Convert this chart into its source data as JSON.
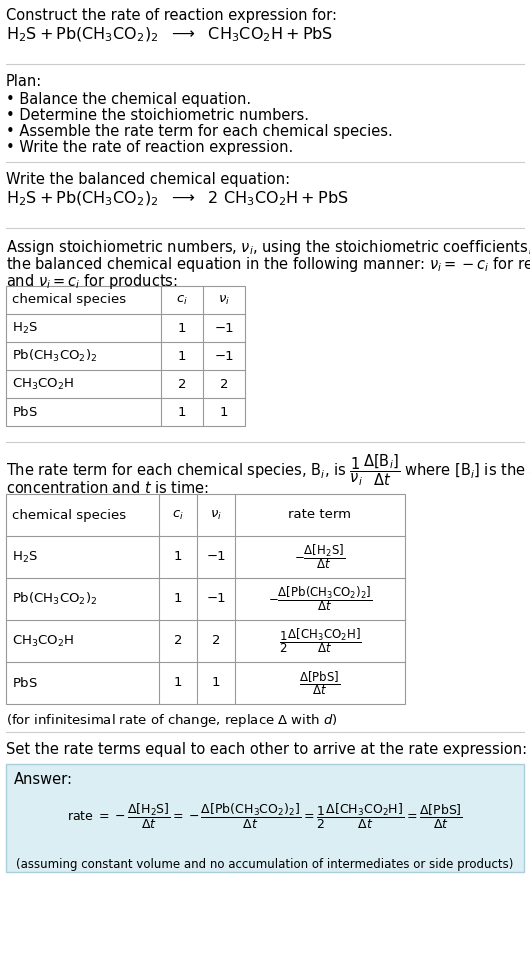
{
  "bg_color": "#ffffff",
  "text_color": "#000000",
  "answer_box_color": "#daeef3",
  "answer_box_border": "#aacfda",
  "fs": 10.5,
  "fs_small": 9.5,
  "fs_tiny": 8.5,
  "title_line1": "Construct the rate of reaction expression for:",
  "plan_header": "Plan:",
  "plan_items": [
    "• Balance the chemical equation.",
    "• Determine the stoichiometric numbers.",
    "• Assemble the rate term for each chemical species.",
    "• Write the rate of reaction expression."
  ],
  "balanced_header": "Write the balanced chemical equation:",
  "assign_text1": "Assign stoichiometric numbers, $\\nu_i$, using the stoichiometric coefficients, $c_i$, from",
  "assign_text2": "the balanced chemical equation in the following manner: $\\nu_i = -c_i$ for reactants",
  "assign_text3": "and $\\nu_i = c_i$ for products:",
  "table1_headers": [
    "chemical species",
    "$c_i$",
    "$\\nu_i$"
  ],
  "table1_rows": [
    [
      "$\\mathrm{H_2S}$",
      "1",
      "−1"
    ],
    [
      "$\\mathrm{Pb(CH_3CO_2)_2}$",
      "1",
      "−1"
    ],
    [
      "$\\mathrm{CH_3CO_2H}$",
      "2",
      "2"
    ],
    [
      "$\\mathrm{PbS}$",
      "1",
      "1"
    ]
  ],
  "rate_text1": "The rate term for each chemical species, $\\mathrm{B}_i$, is $\\dfrac{1}{\\nu_i}\\dfrac{\\Delta[\\mathrm{B}_i]}{\\Delta t}$ where $[\\mathrm{B}_i]$ is the amount",
  "rate_text2": "concentration and $t$ is time:",
  "table2_headers": [
    "chemical species",
    "$c_i$",
    "$\\nu_i$",
    "rate term"
  ],
  "table2_rows": [
    [
      "$\\mathrm{H_2S}$",
      "1",
      "−1",
      "$-\\dfrac{\\Delta[\\mathrm{H_2S}]}{\\Delta t}$"
    ],
    [
      "$\\mathrm{Pb(CH_3CO_2)_2}$",
      "1",
      "−1",
      "$-\\dfrac{\\Delta[\\mathrm{Pb(CH_3CO_2)_2}]}{\\Delta t}$"
    ],
    [
      "$\\mathrm{CH_3CO_2H}$",
      "2",
      "2",
      "$\\dfrac{1}{2}\\dfrac{\\Delta[\\mathrm{CH_3CO_2H}]}{\\Delta t}$"
    ],
    [
      "$\\mathrm{PbS}$",
      "1",
      "1",
      "$\\dfrac{\\Delta[\\mathrm{PbS}]}{\\Delta t}$"
    ]
  ],
  "infinitesimal_note": "(for infinitesimal rate of change, replace Δ with $d$)",
  "set_text": "Set the rate terms equal to each other to arrive at the rate expression:",
  "answer_label": "Answer:",
  "assuming_note": "(assuming constant volume and no accumulation of intermediates or side products)"
}
